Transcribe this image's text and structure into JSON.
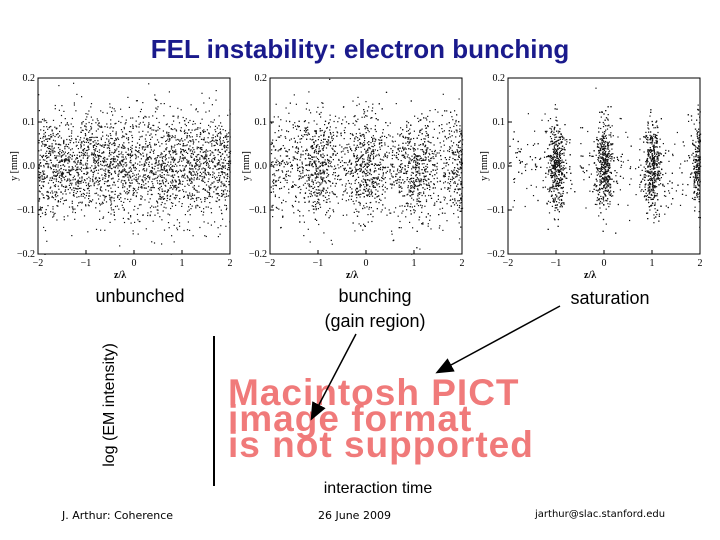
{
  "slide": {
    "title": "FEL instability: electron bunching",
    "labels": {
      "unbunched": "unbunched",
      "bunching": "bunching\n(gain region)",
      "saturation": "saturation",
      "y_axis": "log (EM intensity)",
      "x_axis": "interaction time"
    },
    "pict_placeholder": "Macintosh PICT\nimage format\nis not supported",
    "footer": {
      "author": "J. Arthur: Coherence",
      "date": "26 June 2009",
      "email": "jarthur@slac.stanford.edu"
    }
  },
  "chart_data": [
    {
      "type": "scatter",
      "title": "",
      "xlabel": "z/λ",
      "ylabel": "y [mm]",
      "xlim": [
        -2,
        2
      ],
      "ylim": [
        -0.2,
        0.2
      ],
      "x_ticks": [
        "−2",
        "−1",
        "0",
        "1",
        "2"
      ],
      "y_ticks": [
        "0.2",
        "0.1",
        "0.0",
        "−0.1",
        "−0.2"
      ],
      "distribution": "uniform",
      "bunch_centers": []
    },
    {
      "type": "scatter",
      "title": "",
      "xlabel": "z/λ",
      "ylabel": "y [mm]",
      "xlim": [
        -2,
        2
      ],
      "ylim": [
        -0.2,
        0.2
      ],
      "x_ticks": [
        "−2",
        "−1",
        "0",
        "1",
        "2"
      ],
      "y_ticks": [
        "0.2",
        "0.1",
        "0.0",
        "−0.1",
        "−0.2"
      ],
      "distribution": "partially bunched",
      "bunch_centers": [
        -1,
        0,
        1,
        2
      ]
    },
    {
      "type": "scatter",
      "title": "",
      "xlabel": "z/λ",
      "ylabel": "y [mm]",
      "xlim": [
        -2,
        2
      ],
      "ylim": [
        -0.2,
        0.2
      ],
      "x_ticks": [
        "−2",
        "−1",
        "0",
        "1",
        "2"
      ],
      "y_ticks": [
        "0.2",
        "0.1",
        "0.0",
        "−0.1",
        "−0.2"
      ],
      "distribution": "bunched",
      "bunch_centers": [
        -1,
        0,
        1,
        2
      ]
    }
  ]
}
